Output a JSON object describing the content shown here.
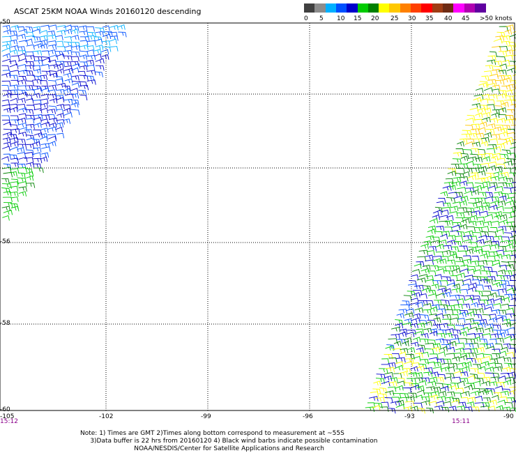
{
  "title": "ASCAT 25KM NOAA Winds 20160120 descending",
  "legend": {
    "colors": [
      "#404040",
      "#8c8c8c",
      "#00b0ff",
      "#0050ff",
      "#0000cc",
      "#00cc00",
      "#008000",
      "#ffff00",
      "#ffc800",
      "#ff8000",
      "#ff4000",
      "#ff0000",
      "#a03c14",
      "#6e2b14",
      "#ff00ff",
      "#b000b0",
      "#6000a0"
    ],
    "labels": [
      "0",
      "5",
      "10",
      "15",
      "20",
      "25",
      "30",
      "35",
      "40",
      "45",
      ">50 knots"
    ]
  },
  "axes": {
    "lon_ticks": [
      "-105",
      "-102",
      "-99",
      "-96",
      "-93",
      "-90"
    ],
    "lat_ticks": [
      "-50",
      "-52",
      "-54",
      "-56",
      "-58",
      "-60"
    ],
    "lat_labels_shown": [
      "-50",
      "-56",
      "-58",
      "-60"
    ]
  },
  "times": {
    "left": "15:12",
    "right": "15:11"
  },
  "notes": {
    "line1": "Note: 1) Times are GMT 2)Times along bottom correspond to measurement at ~55S",
    "line2": "3)Data buffer is 22 hrs from 20160120 4) Black wind barbs indicate possible contamination",
    "line3": "NOAA/NESDIS/Center for Satellite Applications and Research"
  }
}
